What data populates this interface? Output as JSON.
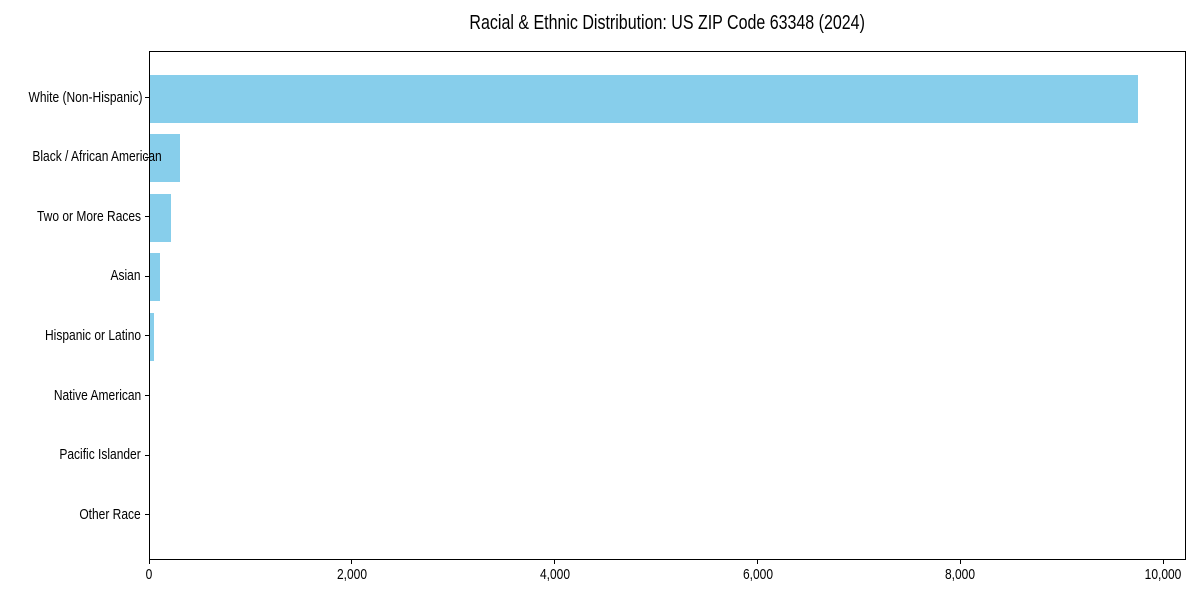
{
  "chart_data": {
    "type": "bar",
    "orientation": "horizontal",
    "title": "Racial & Ethnic Distribution: US ZIP Code 63348 (2024)",
    "categories": [
      "White (Non-Hispanic)",
      "Black / African American",
      "Two or More Races",
      "Asian",
      "Hispanic or Latino",
      "Native American",
      "Pacific Islander",
      "Other Race"
    ],
    "values": [
      9740,
      300,
      210,
      100,
      40,
      0,
      0,
      0
    ],
    "xlabel": "",
    "ylabel": "",
    "xlim": [
      0,
      10225
    ],
    "xticks": {
      "values": [
        0,
        2000,
        4000,
        6000,
        8000,
        10000
      ],
      "labels": [
        "0",
        "2,000",
        "4,000",
        "6,000",
        "8,000",
        "10,000"
      ]
    },
    "grid": false,
    "legend": null,
    "colors": {
      "bar": "#87CEEB",
      "axis": "#000000",
      "text": "#000000",
      "background": "#ffffff"
    }
  }
}
